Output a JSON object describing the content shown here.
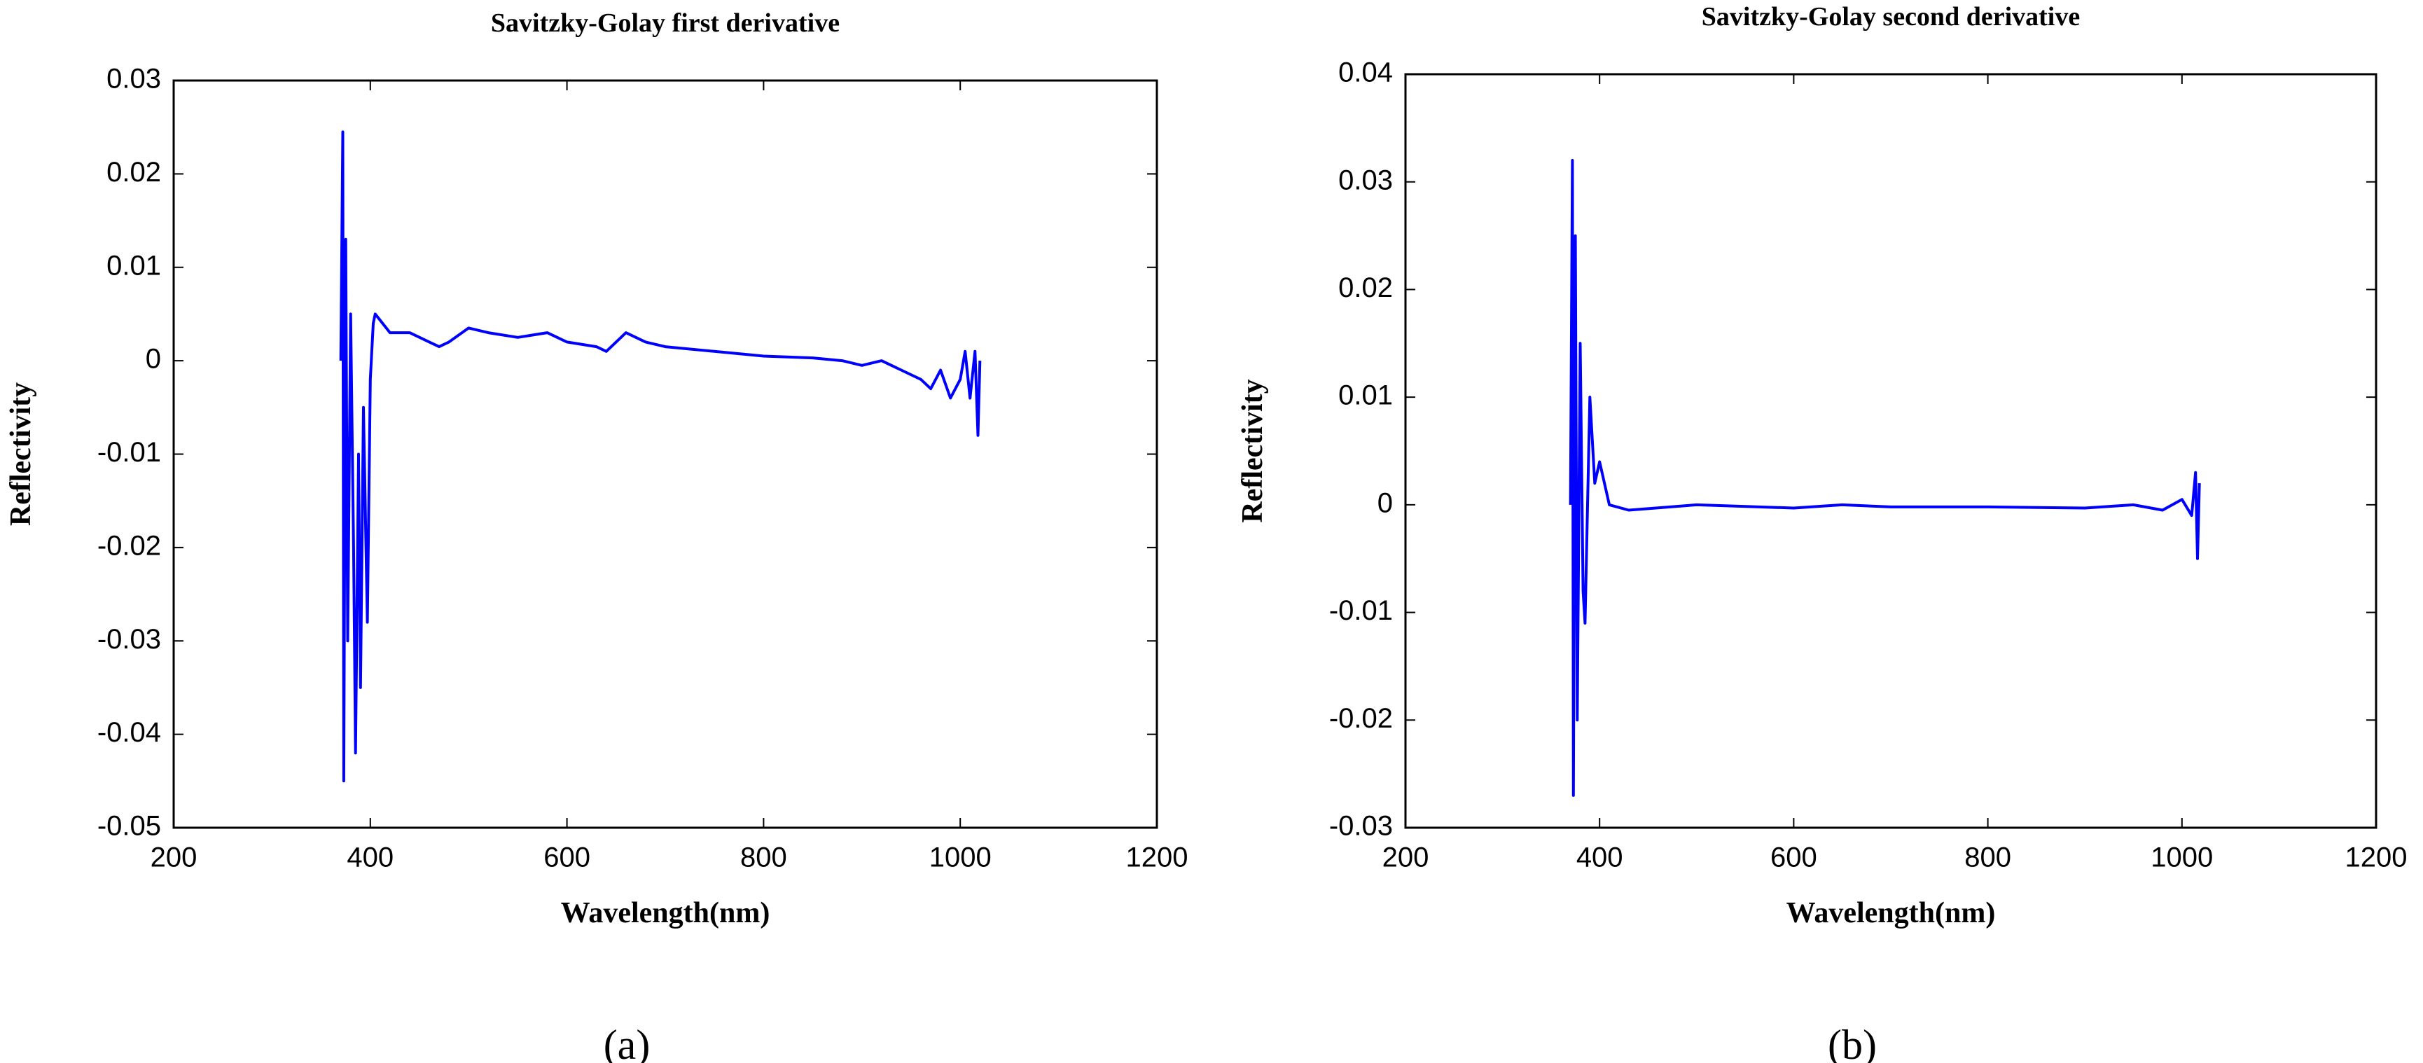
{
  "chart_data": [
    {
      "type": "line",
      "title": "Savitzky-Golay first derivative",
      "xlabel": "Wavelength(nm)",
      "ylabel": "Reflectivity",
      "caption": "(a)",
      "x": [
        370,
        372,
        373,
        375,
        377,
        380,
        383,
        385,
        388,
        390,
        393,
        397,
        400,
        403,
        405,
        420,
        440,
        460,
        470,
        480,
        500,
        520,
        550,
        580,
        600,
        630,
        640,
        660,
        680,
        700,
        750,
        800,
        850,
        880,
        900,
        920,
        940,
        960,
        970,
        980,
        990,
        1000,
        1005,
        1010,
        1015,
        1018,
        1020
      ],
      "values": [
        0,
        0.0245,
        -0.045,
        0.013,
        -0.03,
        0.005,
        -0.02,
        -0.042,
        -0.01,
        -0.035,
        -0.005,
        -0.028,
        -0.002,
        0.004,
        0.005,
        0.003,
        0.003,
        0.002,
        0.0015,
        0.002,
        0.0035,
        0.003,
        0.0025,
        0.003,
        0.002,
        0.0015,
        0.001,
        0.003,
        0.002,
        0.0015,
        0.001,
        0.0005,
        0.0003,
        0,
        -0.0005,
        0,
        -0.001,
        -0.002,
        -0.003,
        -0.001,
        -0.004,
        -0.002,
        0.001,
        -0.004,
        0.001,
        -0.008,
        0
      ],
      "color": "#0000ff",
      "xlim": [
        200,
        1200
      ],
      "xticks": [
        200,
        400,
        600,
        800,
        1000,
        1200
      ],
      "ylim": [
        -0.05,
        0.03
      ],
      "yticks": [
        -0.05,
        -0.04,
        -0.03,
        -0.02,
        -0.01,
        0,
        0.01,
        0.02,
        0.03
      ]
    },
    {
      "type": "line",
      "title": "Savitzky-Golay second derivative",
      "xlabel": "Wavelength(nm)",
      "ylabel": "Reflectivity",
      "caption": "(b)",
      "x": [
        370,
        372,
        373,
        375,
        377,
        380,
        383,
        385,
        390,
        395,
        400,
        410,
        430,
        500,
        600,
        650,
        700,
        800,
        900,
        950,
        980,
        1000,
        1010,
        1014,
        1016,
        1018
      ],
      "values": [
        0,
        0.032,
        -0.027,
        0.025,
        -0.02,
        0.015,
        -0.008,
        -0.011,
        0.01,
        0.002,
        0.004,
        0,
        -0.0005,
        0,
        -0.0003,
        0,
        -0.0002,
        -0.0002,
        -0.0003,
        0,
        -0.0005,
        0.0005,
        -0.001,
        0.003,
        -0.005,
        0.002
      ],
      "color": "#0000ff",
      "xlim": [
        200,
        1200
      ],
      "xticks": [
        200,
        400,
        600,
        800,
        1000,
        1200
      ],
      "ylim": [
        -0.03,
        0.04
      ],
      "yticks": [
        -0.03,
        -0.02,
        -0.01,
        0,
        0.01,
        0.02,
        0.03,
        0.04
      ]
    }
  ]
}
